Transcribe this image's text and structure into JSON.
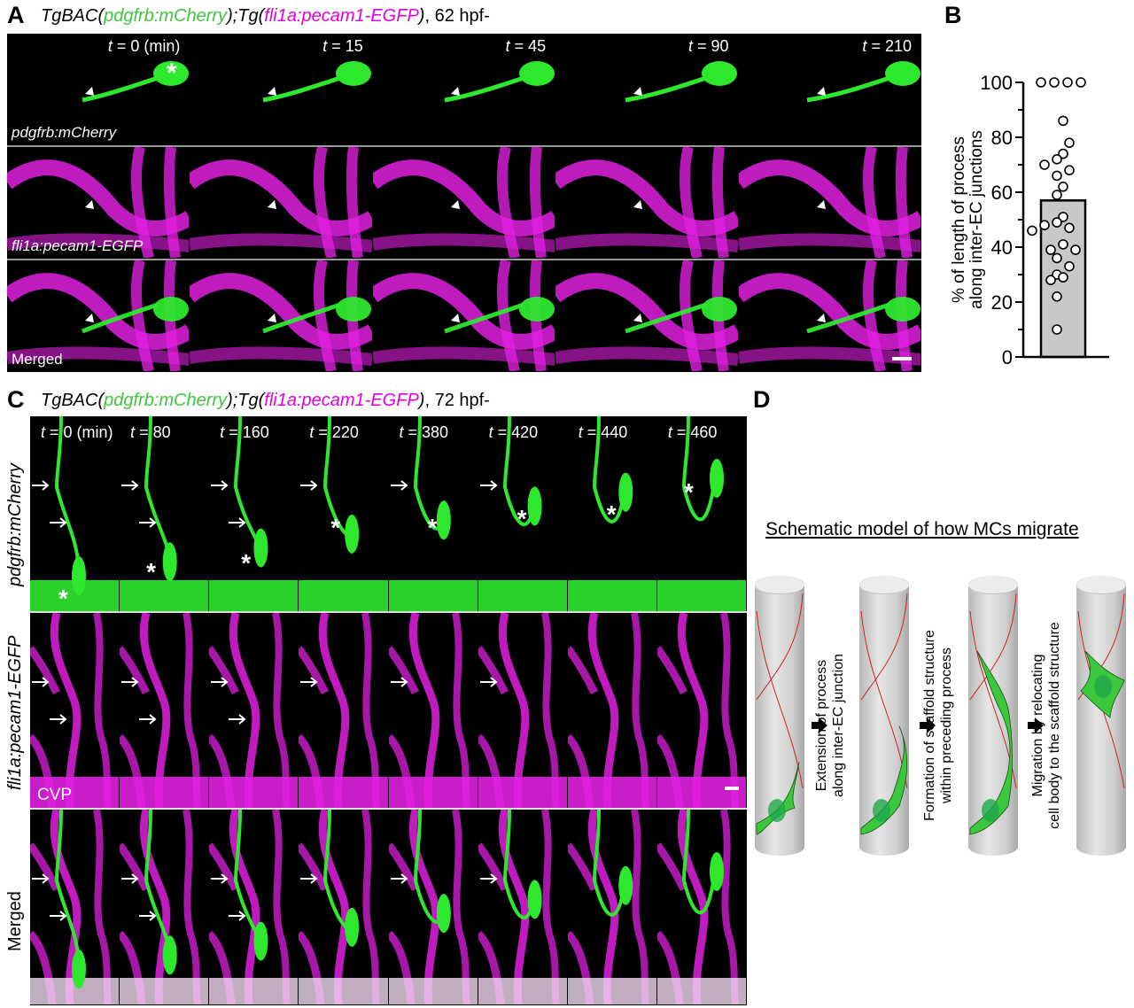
{
  "panelA": {
    "label": "A",
    "title": {
      "p1": "TgBAC(",
      "p2": "pdgfrb:mCherry",
      "p3": ");Tg(",
      "p4": "fli1a:pecam1-EGFP",
      "p5": ")",
      "p6": ", 62 hpf-"
    },
    "times": [
      "t = 0 (min)",
      "t = 15",
      "t = 45",
      "t = 90",
      "t = 210"
    ],
    "rows": [
      "pdgfrb:mCherry",
      "fli1a:pecam1-EGFP",
      "Merged"
    ]
  },
  "panelB": {
    "label": "B"
  },
  "chart_data": {
    "type": "bar",
    "ylabel_line1": "% of length of process",
    "ylabel_line2": "along inter-EC junctions",
    "ylim": [
      0,
      100
    ],
    "yticks": [
      "0",
      "20",
      "40",
      "60",
      "80",
      "100"
    ],
    "bar_mean": 57,
    "points": [
      100,
      100,
      100,
      100,
      86,
      78,
      74,
      72,
      70,
      68,
      66,
      62,
      59,
      51,
      49,
      48,
      47,
      46,
      41,
      39,
      39,
      36,
      33,
      30,
      29,
      28,
      22,
      10
    ],
    "bar_color": "#c8c8c8"
  },
  "panelC": {
    "label": "C",
    "title": {
      "p1": "TgBAC(",
      "p2": "pdgfrb:mCherry",
      "p3": ");Tg(",
      "p4": "fli1a:pecam1-EGFP",
      "p5": ")",
      "p6": ", 72 hpf-"
    },
    "times": [
      "t = 0 (min)",
      "t = 80",
      "t = 160",
      "t = 220",
      "t = 380",
      "t = 420",
      "t = 440",
      "t = 460"
    ],
    "rows": [
      "pdgfrb:mCherry",
      "fli1a:pecam1-EGFP",
      "Merged"
    ],
    "cvp": "CVP"
  },
  "panelD": {
    "label": "D",
    "title": "Schematic model of how MCs migrate",
    "steps": [
      {
        "line1": "Extension of process",
        "line2": "along inter-EC junction"
      },
      {
        "line1": "Formation of scaffold structure",
        "line2": "within preceding process"
      },
      {
        "line1": "Migration by relocating",
        "line2": "cell body to the scaffold structure"
      }
    ]
  },
  "colors": {
    "green": "#2ee82e",
    "magenta": "#e020e0",
    "cell": "#3cc83c",
    "junction": "#d02020"
  }
}
